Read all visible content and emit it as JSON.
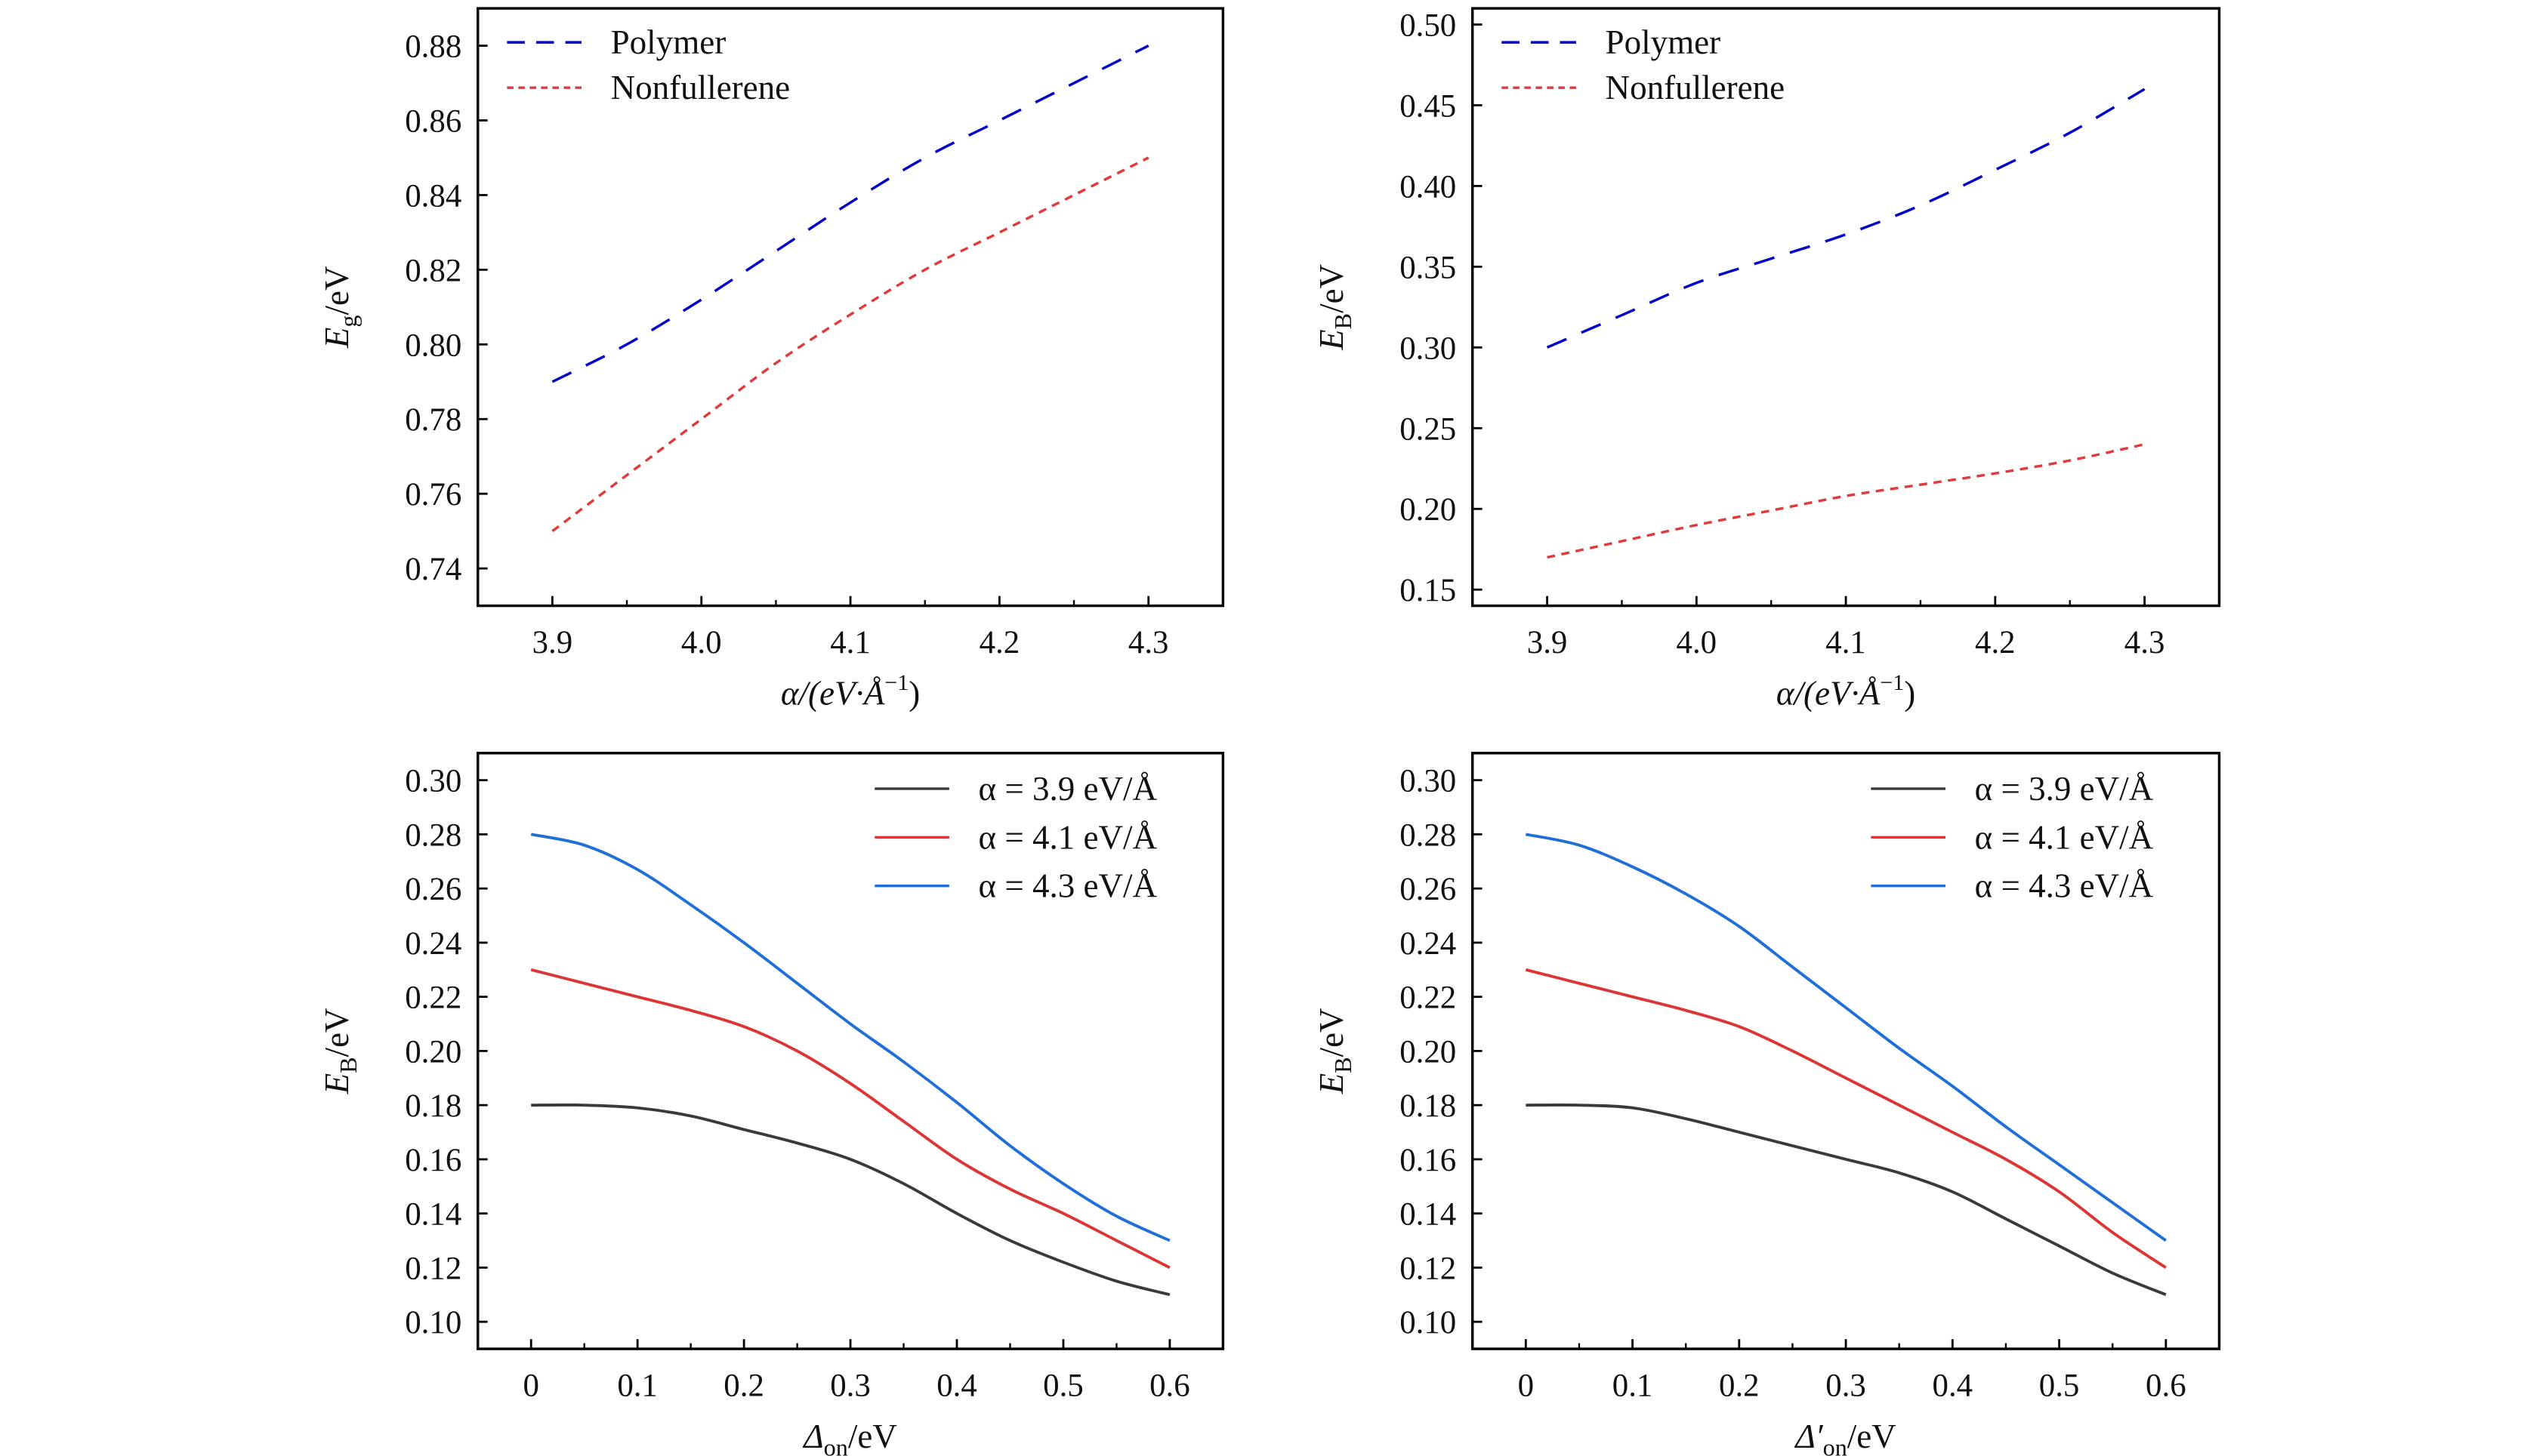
{
  "chart_data": [
    {
      "type": "line",
      "xlabel": {
        "main": "α/(eV·Å",
        "sup": "−1",
        "tail": ")"
      },
      "ylabel": {
        "main": "E",
        "sub": "g",
        "unit": "/eV"
      },
      "xlim": [
        3.85,
        4.35
      ],
      "ylim": [
        0.73,
        0.89
      ],
      "xticks": [
        "3.9",
        "4.0",
        "4.1",
        "4.2",
        "4.3"
      ],
      "yticks": [
        "0.74",
        "0.76",
        "0.78",
        "0.80",
        "0.82",
        "0.84",
        "0.86",
        "0.88"
      ],
      "legend": "top-left",
      "x": [
        3.9,
        3.95,
        4.0,
        4.05,
        4.1,
        4.15,
        4.2,
        4.25,
        4.3
      ],
      "series": [
        {
          "name": "Polymer",
          "color": "#0000cc",
          "style": "dashed",
          "values": [
            0.79,
            0.8,
            0.812,
            0.825,
            0.838,
            0.85,
            0.86,
            0.87,
            0.88
          ]
        },
        {
          "name": "Nonfullerene",
          "color": "#e03a3a",
          "style": "dotted",
          "values": [
            0.75,
            0.765,
            0.78,
            0.795,
            0.808,
            0.82,
            0.83,
            0.84,
            0.85
          ]
        }
      ]
    },
    {
      "type": "line",
      "xlabel": {
        "main": "α/(eV·Å",
        "sup": "−1",
        "tail": ")"
      },
      "ylabel": {
        "main": "E",
        "sub": "B",
        "unit": "/eV"
      },
      "xlim": [
        3.85,
        4.35
      ],
      "ylim": [
        0.14,
        0.51
      ],
      "xticks": [
        "3.9",
        "4.0",
        "4.1",
        "4.2",
        "4.3"
      ],
      "yticks": [
        "0.15",
        "0.20",
        "0.25",
        "0.30",
        "0.35",
        "0.40",
        "0.45",
        "0.50"
      ],
      "legend": "top-left",
      "x": [
        3.9,
        3.95,
        4.0,
        4.05,
        4.1,
        4.15,
        4.2,
        4.25,
        4.3
      ],
      "series": [
        {
          "name": "Polymer",
          "color": "#0000cc",
          "style": "dashed",
          "values": [
            0.3,
            0.32,
            0.34,
            0.355,
            0.37,
            0.388,
            0.41,
            0.433,
            0.46
          ]
        },
        {
          "name": "Nonfullerene",
          "color": "#e03a3a",
          "style": "dotted",
          "values": [
            0.17,
            0.18,
            0.19,
            0.199,
            0.208,
            0.215,
            0.222,
            0.23,
            0.24
          ]
        }
      ]
    },
    {
      "type": "line",
      "xlabel": {
        "main": "Δ",
        "sub": "on",
        "unit": "/eV"
      },
      "ylabel": {
        "main": "E",
        "sub": "B",
        "unit": "/eV"
      },
      "xlim": [
        -0.05,
        0.65
      ],
      "ylim": [
        0.09,
        0.31
      ],
      "xticks": [
        "0",
        "0.1",
        "0.2",
        "0.3",
        "0.4",
        "0.5",
        "0.6"
      ],
      "yticks": [
        "0.10",
        "0.12",
        "0.14",
        "0.16",
        "0.18",
        "0.20",
        "0.22",
        "0.24",
        "0.26",
        "0.28",
        "0.30"
      ],
      "legend": "top-right",
      "x": [
        0,
        0.05,
        0.1,
        0.15,
        0.2,
        0.25,
        0.3,
        0.35,
        0.4,
        0.45,
        0.5,
        0.55,
        0.6
      ],
      "series": [
        {
          "name": "α = 3.9 eV/Å",
          "color": "#3a3a3a",
          "style": "solid",
          "values": [
            0.18,
            0.18,
            0.179,
            0.176,
            0.171,
            0.166,
            0.16,
            0.151,
            0.14,
            0.13,
            0.122,
            0.115,
            0.11
          ]
        },
        {
          "name": "α = 4.1 eV/Å",
          "color": "#dd3535",
          "style": "solid",
          "values": [
            0.23,
            0.225,
            0.22,
            0.215,
            0.209,
            0.2,
            0.188,
            0.174,
            0.16,
            0.149,
            0.14,
            0.13,
            0.12
          ]
        },
        {
          "name": "α = 4.3 eV/Å",
          "color": "#1f6fd6",
          "style": "solid",
          "values": [
            0.28,
            0.276,
            0.267,
            0.254,
            0.24,
            0.225,
            0.21,
            0.196,
            0.181,
            0.165,
            0.151,
            0.139,
            0.13
          ]
        }
      ]
    },
    {
      "type": "line",
      "xlabel": {
        "main": "Δ′",
        "sub": "on",
        "unit": "/eV"
      },
      "ylabel": {
        "main": "E",
        "sub": "B",
        "unit": "/eV"
      },
      "xlim": [
        -0.05,
        0.65
      ],
      "ylim": [
        0.09,
        0.31
      ],
      "xticks": [
        "0",
        "0.1",
        "0.2",
        "0.3",
        "0.4",
        "0.5",
        "0.6"
      ],
      "yticks": [
        "0.10",
        "0.12",
        "0.14",
        "0.16",
        "0.18",
        "0.20",
        "0.22",
        "0.24",
        "0.26",
        "0.28",
        "0.30"
      ],
      "legend": "top-right",
      "x": [
        0,
        0.05,
        0.1,
        0.15,
        0.2,
        0.25,
        0.3,
        0.35,
        0.4,
        0.45,
        0.5,
        0.55,
        0.6
      ],
      "series": [
        {
          "name": "α = 3.9 eV/Å",
          "color": "#3a3a3a",
          "style": "solid",
          "values": [
            0.18,
            0.18,
            0.179,
            0.175,
            0.17,
            0.165,
            0.16,
            0.155,
            0.148,
            0.138,
            0.128,
            0.118,
            0.11
          ]
        },
        {
          "name": "α = 4.1 eV/Å",
          "color": "#dd3535",
          "style": "solid",
          "values": [
            0.23,
            0.225,
            0.22,
            0.215,
            0.209,
            0.2,
            0.19,
            0.18,
            0.17,
            0.16,
            0.148,
            0.133,
            0.12
          ]
        },
        {
          "name": "α = 4.3 eV/Å",
          "color": "#1f6fd6",
          "style": "solid",
          "values": [
            0.28,
            0.276,
            0.268,
            0.258,
            0.246,
            0.231,
            0.216,
            0.201,
            0.187,
            0.172,
            0.158,
            0.144,
            0.13
          ]
        }
      ]
    }
  ]
}
